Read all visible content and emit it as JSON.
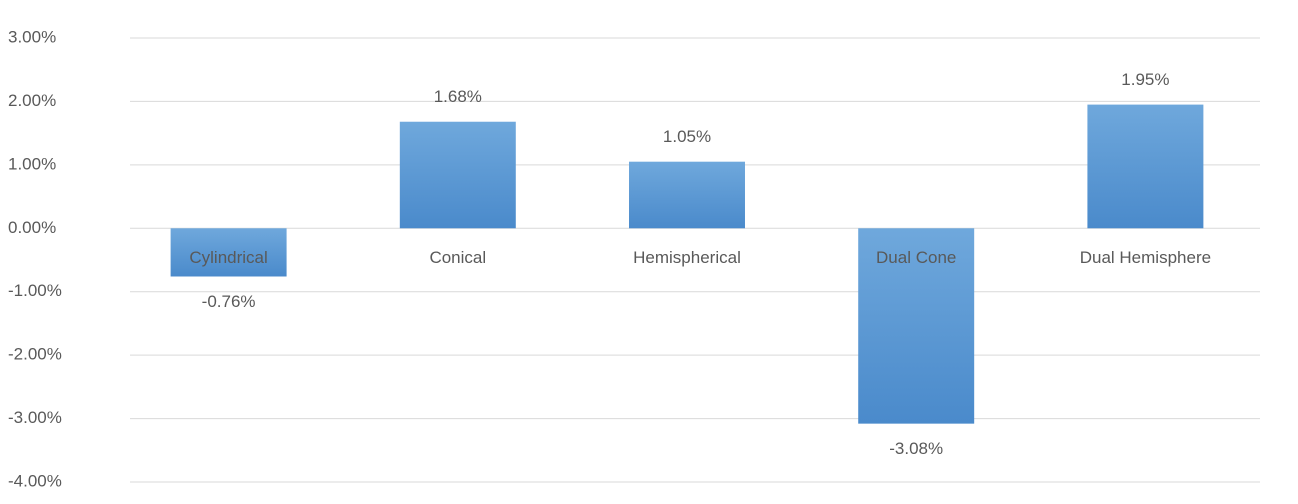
{
  "chart_data": {
    "type": "bar",
    "categories": [
      "Cylindrical",
      "Conical",
      "Hemispherical",
      "Dual Cone",
      "Dual Hemisphere"
    ],
    "values": [
      -0.76,
      1.68,
      1.05,
      -3.08,
      1.95
    ],
    "value_labels": [
      "-0.76%",
      "1.68%",
      "1.05%",
      "-3.08%",
      "1.95%"
    ],
    "color": "#5b9bd5",
    "ylim": [
      -4,
      3
    ],
    "yticks": [
      {
        "value": -4,
        "label": "-4.00%"
      },
      {
        "value": -3,
        "label": "-3.00%"
      },
      {
        "value": -2,
        "label": "-2.00%"
      },
      {
        "value": -1,
        "label": "-1.00%"
      },
      {
        "value": 0,
        "label": "0.00%"
      },
      {
        "value": 1,
        "label": "1.00%"
      },
      {
        "value": 2,
        "label": "2.00%"
      },
      {
        "value": 3,
        "label": "3.00%"
      }
    ],
    "grid": true
  }
}
